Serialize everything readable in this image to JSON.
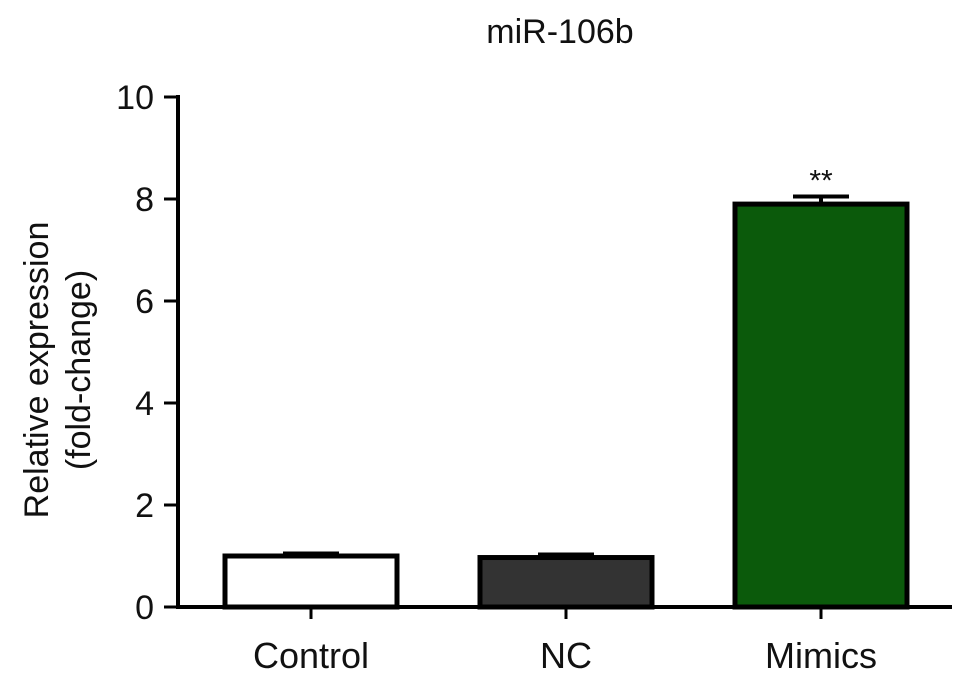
{
  "chart_data": {
    "type": "bar",
    "title": "miR-106b",
    "ylabel_lines": [
      "Relative expression",
      "(fold-change)"
    ],
    "xlabel": "",
    "categories": [
      "Control",
      "NC",
      "Mimics"
    ],
    "values": [
      1.0,
      0.97,
      7.9
    ],
    "errors": [
      0.05,
      0.06,
      0.15
    ],
    "annotations": [
      "",
      "",
      "**"
    ],
    "ylim": [
      0,
      10
    ],
    "yticks": [
      0,
      2,
      4,
      6,
      8,
      10
    ],
    "grid": false,
    "legend": "none",
    "colors": [
      "#ffffff",
      "#333333",
      "#0b5a0b"
    ],
    "edge_color": "#000000"
  }
}
